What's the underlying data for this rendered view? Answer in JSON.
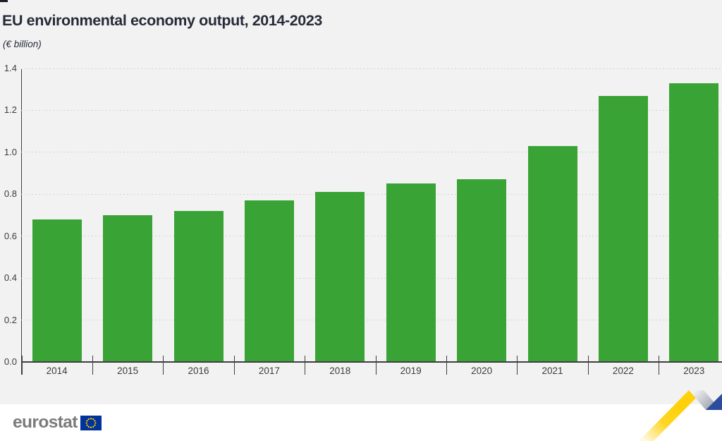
{
  "title": "EU environmental economy output, 2014-2023",
  "subtitle": "(€ billion)",
  "chart_data": {
    "type": "bar",
    "categories": [
      "2014",
      "2015",
      "2016",
      "2017",
      "2018",
      "2019",
      "2020",
      "2021",
      "2022",
      "2023"
    ],
    "values": [
      0.68,
      0.7,
      0.72,
      0.77,
      0.81,
      0.85,
      0.87,
      1.03,
      1.27,
      1.33
    ],
    "title": "EU environmental economy output, 2014-2023",
    "xlabel": "",
    "ylabel": "(€ billion)",
    "ylim": [
      0,
      1.4
    ],
    "yticks": [
      0.0,
      0.2,
      0.4,
      0.6,
      0.8,
      1.0,
      1.2,
      1.4
    ],
    "grid": "horizontal-dashed",
    "legend": "none",
    "bar_color": "#3aa335"
  },
  "colors": {
    "background": "#f2f2f2",
    "bar": "#3aa335",
    "axis": "#3f3f3f",
    "gridline": "#d4d4d4",
    "title_text": "#262b38",
    "tick_text": "#3c3c3c",
    "footer_background": "#ffffff",
    "logo_gray": "#7b7b7b",
    "flag_blue": "#003399",
    "flag_star_yellow": "#ffcc00",
    "ribbon_yellow": "#ffd10a",
    "ribbon_silver": "#9aa0ab",
    "ribbon_blue": "#2c4d9e"
  },
  "footer": {
    "logo_text": "eurostat"
  }
}
